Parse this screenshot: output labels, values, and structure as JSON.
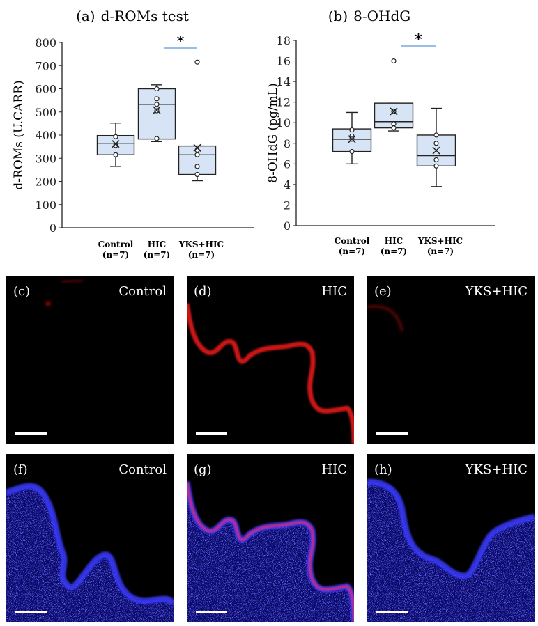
{
  "colors": {
    "box_fill": "#d6e4f5",
    "box_stroke": "#222222",
    "sig_line": "#5b9bd5",
    "panel_bg": "#000000",
    "stain_red": "#ff1a1a",
    "stain_blue": "#2a2aff"
  },
  "chart_data": [
    {
      "type": "box",
      "panel_label": "(a)",
      "title": "d-ROMs test",
      "ylabel": "d-ROMs (U.CARR)",
      "ylim": [
        0,
        800
      ],
      "yticks": [
        0,
        100,
        200,
        300,
        400,
        500,
        600,
        700,
        800
      ],
      "categories": [
        {
          "name": "Control",
          "n": "(n=7)"
        },
        {
          "name": "HIC",
          "n": "(n=7)"
        },
        {
          "name": "YKS+HIC",
          "n": "(n=7)"
        }
      ],
      "boxes": [
        {
          "min": 265,
          "q1": 315,
          "median": 365,
          "q3": 398,
          "max": 452,
          "mean": 362,
          "points": [
            393,
            355,
            315
          ],
          "outliers": []
        },
        {
          "min": 372,
          "q1": 383,
          "median": 533,
          "q3": 600,
          "max": 617,
          "mean": 508,
          "points": [
            600,
            557,
            533,
            505,
            385
          ],
          "outliers": []
        },
        {
          "min": 203,
          "q1": 230,
          "median": 315,
          "q3": 353,
          "max": 353,
          "mean": 345,
          "points": [
            335,
            315,
            265,
            230
          ],
          "outliers": [
            715
          ]
        }
      ],
      "significance": {
        "between": [
          "HIC",
          "YKS+HIC"
        ],
        "mark": "*"
      }
    },
    {
      "type": "box",
      "panel_label": "(b)",
      "title": "8-OHdG",
      "ylabel": "8-OHdG (pg/mL)",
      "ylim": [
        0,
        18
      ],
      "yticks": [
        0,
        2,
        4,
        6,
        8,
        10,
        12,
        14,
        16,
        18
      ],
      "categories": [
        {
          "name": "Control",
          "n": "(n=7)"
        },
        {
          "name": "HIC",
          "n": "(n=7)"
        },
        {
          "name": "YKS+HIC",
          "n": "(n=7)"
        }
      ],
      "boxes": [
        {
          "min": 6.0,
          "q1": 7.2,
          "median": 8.4,
          "q3": 9.4,
          "max": 11.0,
          "mean": 8.4,
          "points": [
            9.3,
            8.7,
            8.4,
            7.2
          ],
          "outliers": []
        },
        {
          "min": 9.2,
          "q1": 9.5,
          "median": 10.1,
          "q3": 11.9,
          "max": 11.9,
          "mean": 11.1,
          "points": [
            11.1,
            9.9,
            9.5
          ],
          "outliers": [
            16.0
          ]
        },
        {
          "min": 3.8,
          "q1": 5.8,
          "median": 6.8,
          "q3": 8.8,
          "max": 11.4,
          "mean": 7.3,
          "points": [
            8.8,
            8.0,
            6.4,
            5.8
          ],
          "outliers": []
        }
      ],
      "significance": {
        "between": [
          "HIC",
          "YKS+HIC"
        ],
        "mark": "*"
      }
    }
  ],
  "micrographs": [
    {
      "label": "(c)",
      "group": "Control",
      "stain": "red"
    },
    {
      "label": "(d)",
      "group": "HIC",
      "stain": "red"
    },
    {
      "label": "(e)",
      "group": "YKS+HIC",
      "stain": "red"
    },
    {
      "label": "(f)",
      "group": "Control",
      "stain": "merged"
    },
    {
      "label": "(g)",
      "group": "HIC",
      "stain": "merged"
    },
    {
      "label": "(h)",
      "group": "YKS+HIC",
      "stain": "merged"
    }
  ]
}
